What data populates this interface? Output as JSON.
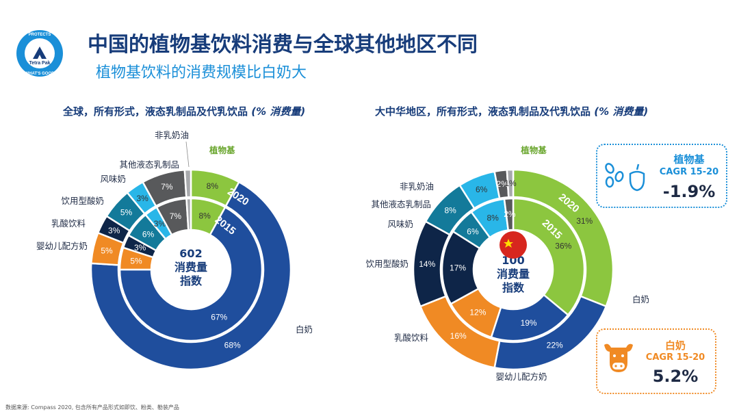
{
  "header": {
    "title": "中国的植物基饮料消费与全球其他地区不同",
    "subtitle": "植物基饮料的消费规模比白奶大"
  },
  "logo": {
    "brand": "Tetra Pak",
    "ring_top": "PROTECTS",
    "ring_bottom": "WHAT'S GOOD"
  },
  "charts": {
    "global": {
      "title": "全球，所有形式，液态乳制品及代乳饮品 ",
      "unit": "(% 消费量)",
      "center_number": "602",
      "center_label_1": "消费量",
      "center_label_2": "指数",
      "outer_ring_label": "2020",
      "inner_ring_label": "2015"
    },
    "china": {
      "title": "大中华地区，所有形式，液态乳制品及代乳饮品 ",
      "unit": "(% 消费量)",
      "center_number": "100",
      "center_label_1": "消费量",
      "center_label_2": "指数",
      "outer_ring_label": "2020",
      "inner_ring_label": "2015"
    }
  },
  "chart_data": [
    {
      "type": "pie",
      "variant": "nested-donut",
      "title": "全球，所有形式，液态乳制品及代乳饮品 (% 消费量)",
      "categories": [
        "植物基",
        "白奶",
        "婴幼儿配方奶",
        "乳酸饮料",
        "饮用型酸奶",
        "风味奶",
        "其他液态乳制品",
        "非乳奶油"
      ],
      "series": [
        {
          "name": "2020",
          "values": [
            8,
            68,
            5,
            3,
            5,
            3,
            7,
            1
          ]
        },
        {
          "name": "2015",
          "values": [
            8,
            67,
            5,
            3,
            6,
            3,
            7,
            1
          ]
        }
      ],
      "data_labels": {
        "2020": [
          "8%",
          "68%",
          "5%",
          "3%",
          "5%",
          "3%",
          "7%",
          ""
        ],
        "2015": [
          "8%",
          "67%",
          "5%",
          "3%",
          "6%",
          "3%",
          "7%",
          ""
        ]
      },
      "colors": [
        "#8cc63f",
        "#1f4e9d",
        "#f08a24",
        "#0e2548",
        "#137a9a",
        "#29b6e8",
        "#58595b",
        "#a7a9ac"
      ]
    },
    {
      "type": "pie",
      "variant": "nested-donut",
      "title": "大中华地区，所有形式，液态乳制品及代乳饮品 (% 消费量)",
      "categories": [
        "植物基",
        "白奶",
        "婴幼儿配方奶",
        "乳酸饮料",
        "饮用型酸奶",
        "风味奶",
        "其他液态乳制品",
        "非乳奶油"
      ],
      "series": [
        {
          "name": "2020",
          "values": [
            31,
            22,
            16,
            14,
            8,
            6,
            2,
            1
          ]
        },
        {
          "name": "2015",
          "values": [
            36,
            19,
            12,
            17,
            6,
            8,
            2,
            0
          ]
        }
      ],
      "data_labels": {
        "2020": [
          "31%",
          "22%",
          "16%",
          "14%",
          "8%",
          "6%",
          "2%",
          "1%"
        ],
        "2015": [
          "36%",
          "19%",
          "12%",
          "17%",
          "6%",
          "8%",
          "2%",
          "0%"
        ]
      },
      "colors": [
        "#8cc63f",
        "#1f4e9d",
        "#f08a24",
        "#0e2548",
        "#137a9a",
        "#29b6e8",
        "#58595b",
        "#a7a9ac"
      ]
    }
  ],
  "callouts": {
    "plant": {
      "label": "植物基",
      "sub": "CAGR 15-20",
      "value": "-1.9%",
      "color": "#1a8fd8",
      "icon": "plant-seeds-icon"
    },
    "milk": {
      "label": "白奶",
      "sub": "CAGR 15-20",
      "value": "5.2%",
      "color": "#f08a24",
      "icon": "cow-icon"
    }
  },
  "source": "数据来源: Compass 2020, 包含所有产品形式如即饮、粉类、勒装产品"
}
